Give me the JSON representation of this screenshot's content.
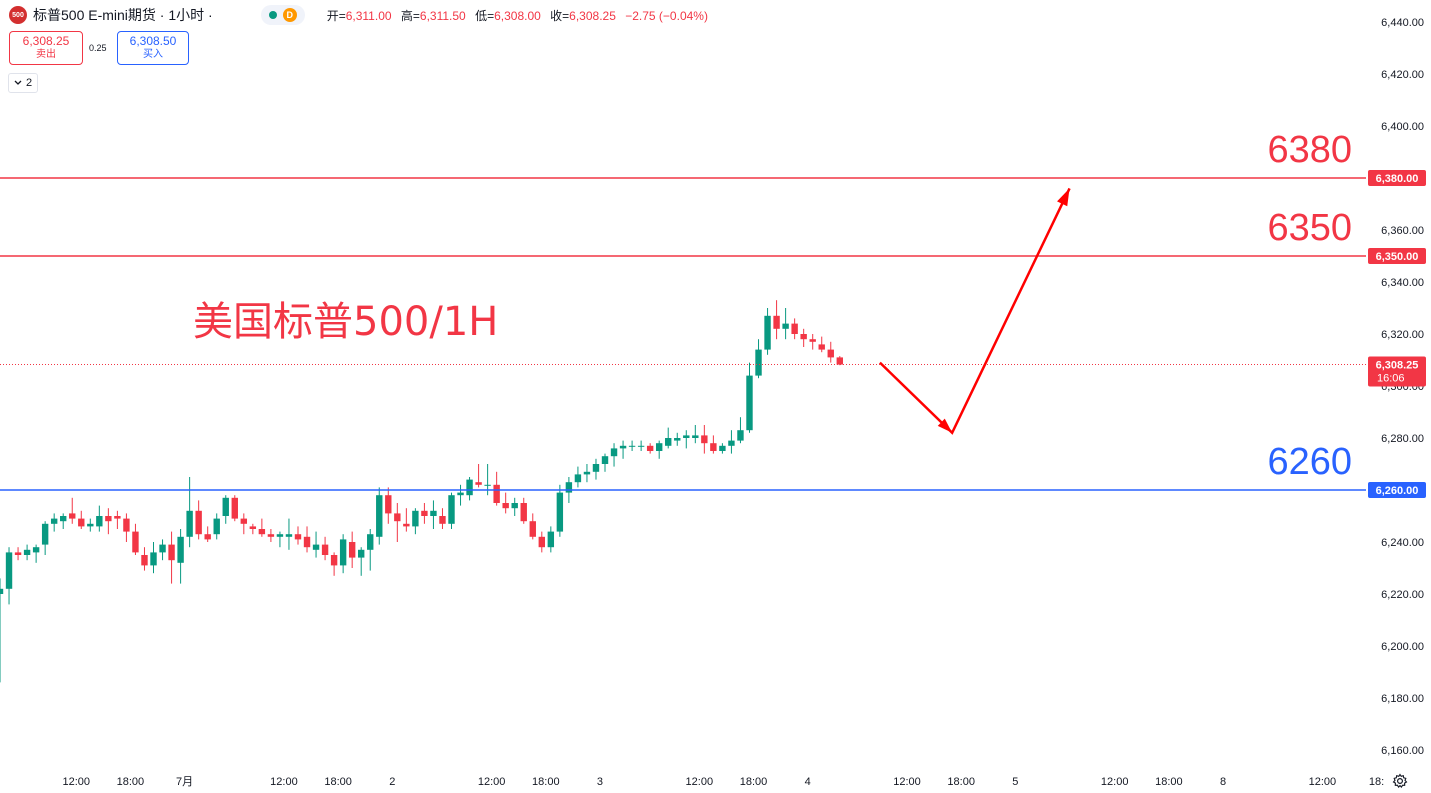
{
  "header": {
    "symbol_badge": "500",
    "title": "标普500 E-mini期货 · 1小时 ·",
    "status_badge": "D",
    "open_label": "开=",
    "open": "6,311.00",
    "high_label": "高=",
    "high": "6,311.50",
    "low_label": "低=",
    "low": "6,308.00",
    "close_label": "收=",
    "close": "6,308.25",
    "change": "−2.75 (−0.04%)"
  },
  "trade": {
    "sell_price": "6,308.25",
    "sell_label": "卖出",
    "spread": "0.25",
    "buy_price": "6,308.50",
    "buy_label": "买入",
    "indicator_count": "2"
  },
  "colors": {
    "up": "#089981",
    "down": "#f23645",
    "resistance": "#f23645",
    "support": "#2962ff",
    "arrow": "#ff0000",
    "axis_text": "#131722"
  },
  "chart_data": {
    "type": "candlestick",
    "ylim": [
      6150,
      6445
    ],
    "y_ticks": [
      "6,440.00",
      "6,420.00",
      "6,400.00",
      "6,380.00",
      "6,360.00",
      "6,340.00",
      "6,320.00",
      "6,300.00",
      "6,280.00",
      "6,260.00",
      "6,240.00",
      "6,220.00",
      "6,200.00",
      "6,180.00",
      "6,160.00"
    ],
    "y_tick_values": [
      6440,
      6420,
      6400,
      6380,
      6360,
      6340,
      6320,
      6300,
      6280,
      6260,
      6240,
      6220,
      6200,
      6180,
      6160
    ],
    "x_ticks": [
      {
        "label": "12:00",
        "bar": 8
      },
      {
        "label": "18:00",
        "bar": 14
      },
      {
        "label": "7月",
        "bar": 20
      },
      {
        "label": "12:00",
        "bar": 31
      },
      {
        "label": "18:00",
        "bar": 37
      },
      {
        "label": "2",
        "bar": 43
      },
      {
        "label": "12:00",
        "bar": 54
      },
      {
        "label": "18:00",
        "bar": 60
      },
      {
        "label": "3",
        "bar": 66
      },
      {
        "label": "12:00",
        "bar": 77
      },
      {
        "label": "18:00",
        "bar": 83
      },
      {
        "label": "4",
        "bar": 89
      },
      {
        "label": "12:00",
        "bar": 100
      },
      {
        "label": "18:00",
        "bar": 106
      },
      {
        "label": "5",
        "bar": 112
      },
      {
        "label": "12:00",
        "bar": 123
      },
      {
        "label": "18:00",
        "bar": 129
      },
      {
        "label": "8",
        "bar": 135
      },
      {
        "label": "12:00",
        "bar": 146
      },
      {
        "label": "18:",
        "bar": 152
      }
    ],
    "overlay_title": "美国标普500/1H",
    "levels": [
      {
        "value": 6380,
        "label": "6380",
        "axis_label": "6,380.00",
        "color": "#f23645"
      },
      {
        "value": 6350,
        "label": "6350",
        "axis_label": "6,350.00",
        "color": "#f23645"
      },
      {
        "value": 6260,
        "label": "6260",
        "axis_label": "6,260.00",
        "color": "#2962ff"
      }
    ],
    "last_price": {
      "value": 6308.25,
      "label": "6,308.25",
      "countdown": "16:06"
    },
    "projection_path": [
      {
        "bar": 97,
        "value": 6309
      },
      {
        "bar": 105,
        "value": 6282
      },
      {
        "bar": 118,
        "value": 6376
      }
    ],
    "candles": [
      [
        6220,
        6226,
        6186,
        6222
      ],
      [
        6222,
        6238,
        6216,
        6236
      ],
      [
        6236,
        6238,
        6233,
        6235
      ],
      [
        6235,
        6239,
        6233,
        6237
      ],
      [
        6236,
        6239,
        6232,
        6238
      ],
      [
        6239,
        6248,
        6235,
        6247
      ],
      [
        6247,
        6251,
        6244,
        6249
      ],
      [
        6248,
        6251,
        6245,
        6250
      ],
      [
        6251,
        6257,
        6247,
        6249
      ],
      [
        6249,
        6252,
        6245,
        6246
      ],
      [
        6246,
        6249,
        6244,
        6247
      ],
      [
        6246,
        6254,
        6244,
        6250
      ],
      [
        6250,
        6253,
        6243,
        6248
      ],
      [
        6250,
        6252,
        6245,
        6249
      ],
      [
        6249,
        6251,
        6240,
        6244
      ],
      [
        6244,
        6247,
        6235,
        6236
      ],
      [
        6235,
        6238,
        6229,
        6231
      ],
      [
        6231,
        6240,
        6228,
        6236
      ],
      [
        6236,
        6241,
        6233,
        6239
      ],
      [
        6239,
        6244,
        6224,
        6233
      ],
      [
        6232,
        6245,
        6224,
        6242
      ],
      [
        6242,
        6265,
        6238,
        6252
      ],
      [
        6252,
        6256,
        6241,
        6243
      ],
      [
        6243,
        6246,
        6240,
        6241
      ],
      [
        6243,
        6251,
        6241,
        6249
      ],
      [
        6250,
        6258,
        6247,
        6257
      ],
      [
        6257,
        6258,
        6248,
        6249
      ],
      [
        6249,
        6251,
        6243,
        6247
      ],
      [
        6246,
        6247,
        6243,
        6245
      ],
      [
        6245,
        6249,
        6242,
        6243
      ],
      [
        6243,
        6245,
        6240,
        6242
      ],
      [
        6242,
        6244,
        6238,
        6243
      ],
      [
        6242,
        6249,
        6237,
        6243
      ],
      [
        6243,
        6246,
        6239,
        6241
      ],
      [
        6242,
        6246,
        6236,
        6238
      ],
      [
        6237,
        6244,
        6234,
        6239
      ],
      [
        6239,
        6242,
        6233,
        6235
      ],
      [
        6235,
        6236,
        6227,
        6231
      ],
      [
        6231,
        6243,
        6228,
        6241
      ],
      [
        6240,
        6244,
        6230,
        6234
      ],
      [
        6234,
        6238,
        6227,
        6237
      ],
      [
        6237,
        6245,
        6229,
        6243
      ],
      [
        6242,
        6261,
        6239,
        6258
      ],
      [
        6258,
        6261,
        6247,
        6251
      ],
      [
        6251,
        6255,
        6240,
        6248
      ],
      [
        6247,
        6253,
        6244,
        6246
      ],
      [
        6246,
        6253,
        6243,
        6252
      ],
      [
        6252,
        6255,
        6247,
        6250
      ],
      [
        6250,
        6256,
        6245,
        6252
      ],
      [
        6250,
        6253,
        6245,
        6247
      ],
      [
        6247,
        6259,
        6245,
        6258
      ],
      [
        6258,
        6262,
        6254,
        6259
      ],
      [
        6258,
        6265,
        6256,
        6264
      ],
      [
        6263,
        6270,
        6261,
        6262
      ],
      [
        6262,
        6270,
        6258,
        6262
      ],
      [
        6262,
        6267,
        6254,
        6255
      ],
      [
        6255,
        6259,
        6251,
        6253
      ],
      [
        6253,
        6257,
        6250,
        6255
      ],
      [
        6255,
        6257,
        6247,
        6248
      ],
      [
        6248,
        6251,
        6241,
        6242
      ],
      [
        6242,
        6244,
        6236,
        6238
      ],
      [
        6238,
        6246,
        6236,
        6244
      ],
      [
        6244,
        6262,
        6242,
        6259
      ],
      [
        6259,
        6265,
        6255,
        6263
      ],
      [
        6263,
        6269,
        6261,
        6266
      ],
      [
        6266,
        6270,
        6263,
        6267
      ],
      [
        6267,
        6272,
        6264,
        6270
      ],
      [
        6270,
        6274,
        6267,
        6273
      ],
      [
        6273,
        6278,
        6269,
        6276
      ],
      [
        6276,
        6279,
        6272,
        6277
      ],
      [
        6277,
        6279,
        6275,
        6277
      ],
      [
        6277,
        6279,
        6275,
        6277
      ],
      [
        6277,
        6278,
        6274,
        6275
      ],
      [
        6275,
        6279,
        6272,
        6278
      ],
      [
        6277,
        6284,
        6276,
        6280
      ],
      [
        6279,
        6282,
        6277,
        6280
      ],
      [
        6280,
        6283,
        6276,
        6281
      ],
      [
        6280,
        6285,
        6278,
        6281
      ],
      [
        6281,
        6285,
        6274,
        6278
      ],
      [
        6278,
        6281,
        6274,
        6275
      ],
      [
        6275,
        6278,
        6274,
        6277
      ],
      [
        6277,
        6283,
        6274,
        6279
      ],
      [
        6279,
        6288,
        6278,
        6283
      ],
      [
        6283,
        6309,
        6282,
        6304
      ],
      [
        6304,
        6318,
        6303,
        6314
      ],
      [
        6314,
        6330,
        6312,
        6327
      ],
      [
        6327,
        6333,
        6318,
        6322
      ],
      [
        6322,
        6330,
        6318,
        6324
      ],
      [
        6324,
        6326,
        6318,
        6320
      ],
      [
        6320,
        6322,
        6315,
        6318
      ],
      [
        6318,
        6320,
        6314,
        6317
      ],
      [
        6316,
        6319,
        6313,
        6314
      ],
      [
        6314,
        6317,
        6309,
        6311
      ],
      [
        6311,
        6311.5,
        6308,
        6308.25
      ]
    ]
  }
}
